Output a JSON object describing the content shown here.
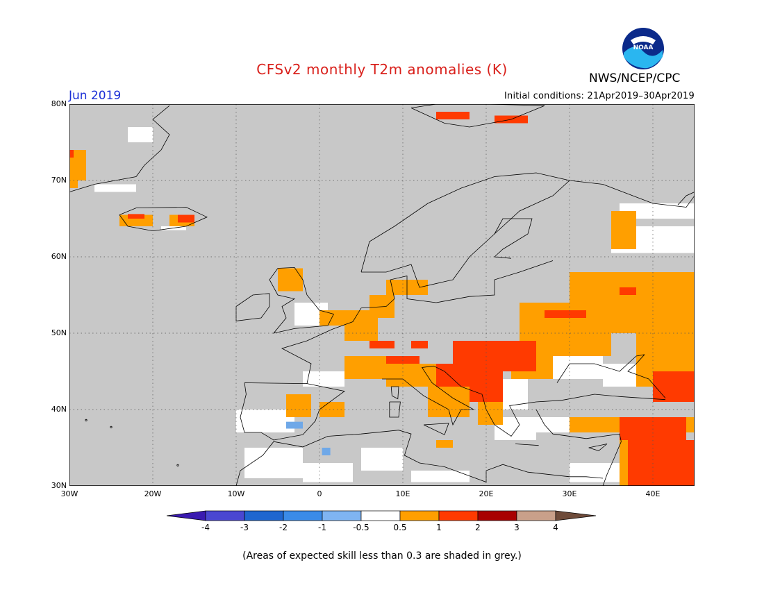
{
  "header": {
    "title": "CFSv2 monthly T2m anomalies (K)",
    "month": "Jun 2019",
    "initial_conditions": "Initial conditions: 21Apr2019–30Apr2019",
    "org": "NWS/NCEP/CPC",
    "logo_text": "NOAA"
  },
  "map": {
    "lat_range": [
      30,
      80
    ],
    "lon_range": [
      -30,
      45
    ],
    "lat_ticks": [
      "80N",
      "70N",
      "60N",
      "50N",
      "40N",
      "30N"
    ],
    "lon_ticks": [
      "30W",
      "20W",
      "10W",
      "0",
      "10E",
      "20E",
      "30E",
      "40E"
    ],
    "background_color": "#c8c8c8",
    "grid": "dotted"
  },
  "colorbar": {
    "labels": [
      "-4",
      "-3",
      "-2",
      "-1",
      "-0.5",
      "0.5",
      "1",
      "2",
      "3",
      "4"
    ],
    "colors": [
      "#3a1ab0",
      "#4a47d1",
      "#1f66cf",
      "#3a8be8",
      "#7fb4f2",
      "#ffffff",
      "#ff9f00",
      "#ff3a00",
      "#a80000",
      "#c9a08a",
      "#6e4b3a"
    ]
  },
  "footnote": "(Areas of expected skill less than 0.3 are shaded in grey.)",
  "legend_colors": {
    "white": "#ffffff",
    "orange": "#ff9f00",
    "red": "#ff3a00",
    "lightblue": "#6fa8e8"
  }
}
